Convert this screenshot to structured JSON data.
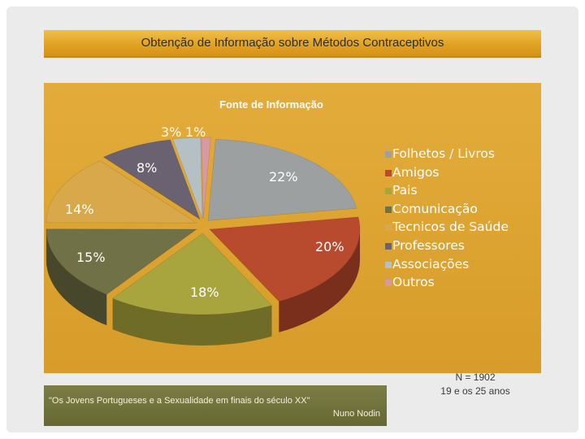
{
  "slide": {
    "title": "Obtenção de Informação sobre Métodos Contraceptivos",
    "source_line1": "\"Os Jovens Portugueses e a Sexualidade em finais do século XX\"",
    "source_line2": "Nuno Nodin",
    "note_line1": "N = 1902",
    "note_line2": "19 e os 25 anos"
  },
  "chart_data": {
    "type": "pie",
    "title": "Fonte de Informação",
    "style": "exploded 3D pie",
    "legend_position": "right",
    "categories": [
      "Folhetos / Livros",
      "Amigos",
      "Pais",
      "Comunicação",
      "Tecnicos de Saúde",
      "Professores",
      "Associações",
      "Outros"
    ],
    "values": [
      22,
      20,
      18,
      15,
      14,
      8,
      3,
      1
    ],
    "labels": [
      "22%",
      "20%",
      "18%",
      "15%",
      "14%",
      "8%",
      "3%",
      "1%"
    ],
    "colors": [
      "#9da0a0",
      "#b84a2e",
      "#a8a43e",
      "#707146",
      "#d8a84a",
      "#6a6270",
      "#b4c0c4",
      "#d89aa0"
    ],
    "side_colors": [
      "#6e7171",
      "#7a2f1d",
      "#6f6c28",
      "#46472b",
      "#9a762f",
      "#443e48",
      "#7c8487",
      "#9a6a6e"
    ]
  }
}
